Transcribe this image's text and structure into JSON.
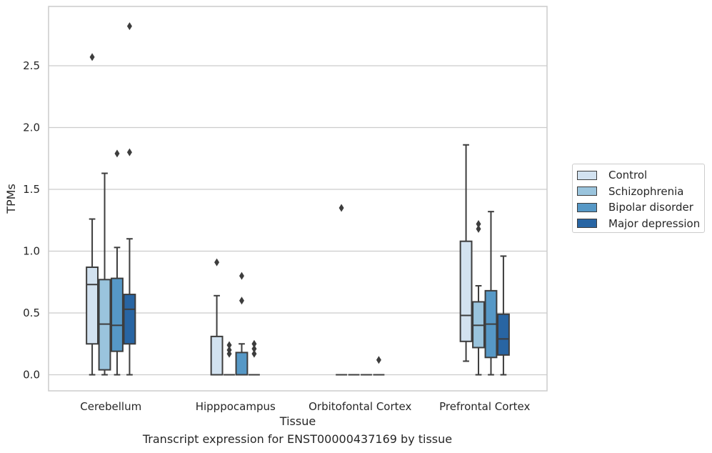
{
  "chart_data": {
    "type": "box",
    "title": "",
    "caption": "Transcript expression for ENST00000437169 by tissue",
    "xlabel": "Tissue",
    "ylabel": "TPMs",
    "ylim": [
      -0.13,
      2.98
    ],
    "yticks": [
      0.0,
      0.5,
      1.0,
      1.5,
      2.0,
      2.5
    ],
    "ytick_labels": [
      "0.0",
      "0.5",
      "1.0",
      "1.5",
      "2.0",
      "2.5"
    ],
    "grid": "horizontal",
    "legend_position": "right",
    "categories": [
      "Cerebellum",
      "Hipppocampus",
      "Orbitofontal Cortex",
      "Prefrontal Cortex"
    ],
    "series": [
      {
        "name": "Control",
        "color": "#d2e2f0",
        "boxes": [
          {
            "whislo": 0.0,
            "q1": 0.25,
            "med": 0.73,
            "q3": 0.87,
            "whishi": 1.26,
            "fliers": [
              2.57
            ]
          },
          {
            "whislo": 0.0,
            "q1": 0.0,
            "med": 0.0,
            "q3": 0.31,
            "whishi": 0.64,
            "fliers": [
              0.91
            ]
          },
          {
            "whislo": 0.0,
            "q1": 0.0,
            "med": 0.0,
            "q3": 0.0,
            "whishi": 0.0,
            "fliers": [
              1.35
            ]
          },
          {
            "whislo": 0.11,
            "q1": 0.27,
            "med": 0.48,
            "q3": 1.08,
            "whishi": 1.86,
            "fliers": []
          }
        ]
      },
      {
        "name": "Schizophrenia",
        "color": "#9ac4dd",
        "boxes": [
          {
            "whislo": 0.0,
            "q1": 0.04,
            "med": 0.41,
            "q3": 0.77,
            "whishi": 1.63,
            "fliers": []
          },
          {
            "whislo": 0.0,
            "q1": 0.0,
            "med": 0.0,
            "q3": 0.0,
            "whishi": 0.0,
            "fliers": [
              0.24,
              0.2,
              0.17
            ]
          },
          {
            "whislo": 0.0,
            "q1": 0.0,
            "med": 0.0,
            "q3": 0.0,
            "whishi": 0.0,
            "fliers": []
          },
          {
            "whislo": 0.0,
            "q1": 0.22,
            "med": 0.4,
            "q3": 0.59,
            "whishi": 0.72,
            "fliers": [
              1.22,
              1.18
            ]
          }
        ]
      },
      {
        "name": "Bipolar disorder",
        "color": "#5698c6",
        "boxes": [
          {
            "whislo": 0.0,
            "q1": 0.19,
            "med": 0.4,
            "q3": 0.78,
            "whishi": 1.03,
            "fliers": [
              1.79
            ]
          },
          {
            "whislo": 0.0,
            "q1": 0.0,
            "med": 0.0,
            "q3": 0.18,
            "whishi": 0.25,
            "fliers": [
              0.8,
              0.6
            ]
          },
          {
            "whislo": 0.0,
            "q1": 0.0,
            "med": 0.0,
            "q3": 0.0,
            "whishi": 0.0,
            "fliers": []
          },
          {
            "whislo": 0.0,
            "q1": 0.14,
            "med": 0.41,
            "q3": 0.68,
            "whishi": 1.32,
            "fliers": []
          }
        ]
      },
      {
        "name": "Major depression",
        "color": "#2865a3",
        "boxes": [
          {
            "whislo": 0.0,
            "q1": 0.25,
            "med": 0.53,
            "q3": 0.65,
            "whishi": 1.1,
            "fliers": [
              2.82,
              1.8
            ]
          },
          {
            "whislo": 0.0,
            "q1": 0.0,
            "med": 0.0,
            "q3": 0.0,
            "whishi": 0.0,
            "fliers": [
              0.25,
              0.21,
              0.17
            ]
          },
          {
            "whislo": 0.0,
            "q1": 0.0,
            "med": 0.0,
            "q3": 0.0,
            "whishi": 0.0,
            "fliers": [
              0.12
            ]
          },
          {
            "whislo": 0.0,
            "q1": 0.16,
            "med": 0.29,
            "q3": 0.49,
            "whishi": 0.96,
            "fliers": []
          }
        ]
      }
    ]
  }
}
